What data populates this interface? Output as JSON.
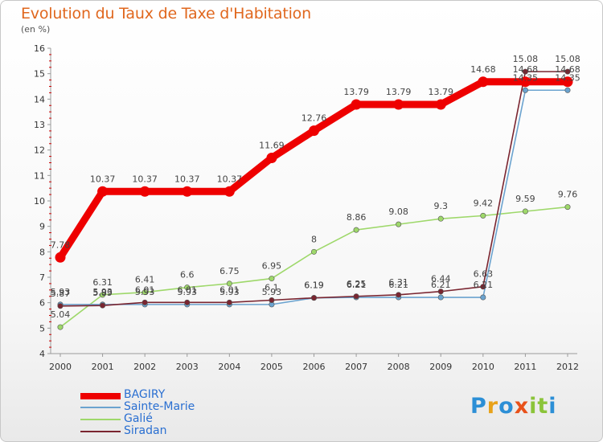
{
  "chart_data": {
    "type": "line",
    "title": "Evolution du Taux de Taxe d'Habitation",
    "subtitle": "(en %)",
    "xlabel": "",
    "ylabel": "(en %)",
    "ylim": [
      4,
      16
    ],
    "y_ticks": [
      "4",
      "5",
      "6",
      "7",
      "8",
      "9",
      "10",
      "11",
      "12",
      "13",
      "14",
      "15",
      "16"
    ],
    "categories": [
      "2000",
      "2001",
      "2002",
      "2003",
      "2004",
      "2005",
      "2006",
      "2007",
      "2008",
      "2009",
      "2010",
      "2011",
      "2012"
    ],
    "series": [
      {
        "name": "BAGIRY",
        "color": "#ee0000",
        "values": [
          7.78,
          10.37,
          10.37,
          10.37,
          10.37,
          11.69,
          12.76,
          13.79,
          13.79,
          13.79,
          14.68,
          14.68,
          14.68
        ],
        "labels": [
          "7.78",
          "10.37",
          "10.37",
          "10.37",
          "10.37",
          "11.69",
          "12.76",
          "13.79",
          "13.79",
          "13.79",
          "14.68",
          "14.68",
          "14.68"
        ]
      },
      {
        "name": "Sainte-Marie",
        "color": "#6ba3cf",
        "values": [
          5.93,
          5.93,
          5.93,
          5.93,
          5.93,
          5.93,
          6.19,
          6.21,
          6.21,
          6.21,
          6.21,
          14.35,
          14.35
        ],
        "labels": [
          "5.93",
          "5.93",
          "5.93",
          "5.93",
          "5.93",
          "5.93",
          "6.19",
          "6.21",
          "6.21",
          "6.21",
          "6.21",
          "14.35",
          "14.35"
        ]
      },
      {
        "name": "Galié",
        "color": "#9ed86a",
        "values": [
          5.04,
          6.31,
          6.41,
          6.6,
          6.75,
          6.95,
          8,
          8.86,
          9.08,
          9.3,
          9.42,
          9.59,
          9.76
        ],
        "labels": [
          "5.04",
          "6.31",
          "6.41",
          "6.6",
          "6.75",
          "6.95",
          "8",
          "8.86",
          "9.08",
          "9.3",
          "9.42",
          "9.59",
          "9.76"
        ]
      },
      {
        "name": "Siradan",
        "color": "#7a2530",
        "values": [
          5.87,
          5.89,
          6.01,
          6.01,
          6.01,
          6.1,
          6.19,
          6.25,
          6.31,
          6.44,
          6.63,
          15.08,
          15.08
        ],
        "labels": [
          "5.87",
          "5.89",
          "6.01",
          "6.01",
          "6.01",
          "6.1",
          "6.19",
          "6.25",
          "6.31",
          "6.44",
          "6.63",
          "15.08",
          "15.08"
        ]
      }
    ]
  },
  "legend": {
    "items": [
      {
        "label": "BAGIRY",
        "color": "#ee0000"
      },
      {
        "label": "Sainte-Marie",
        "color": "#6ba3cf"
      },
      {
        "label": "Galié",
        "color": "#9ed86a"
      },
      {
        "label": "Siradan",
        "color": "#7a2530"
      }
    ]
  },
  "logo": {
    "letters": [
      {
        "ch": "P",
        "color": "#2c8fd6"
      },
      {
        "ch": "r",
        "color": "#e8a21a"
      },
      {
        "ch": "o",
        "color": "#2c8fd6"
      },
      {
        "ch": "x",
        "color": "#e8511a"
      },
      {
        "ch": "i",
        "color": "#8bc43a"
      },
      {
        "ch": "t",
        "color": "#8bc43a"
      },
      {
        "ch": "i",
        "color": "#2c8fd6"
      }
    ]
  },
  "colors": {
    "title": "#e0671e",
    "axis": "#999999",
    "grid_tick": "#cc0000"
  }
}
